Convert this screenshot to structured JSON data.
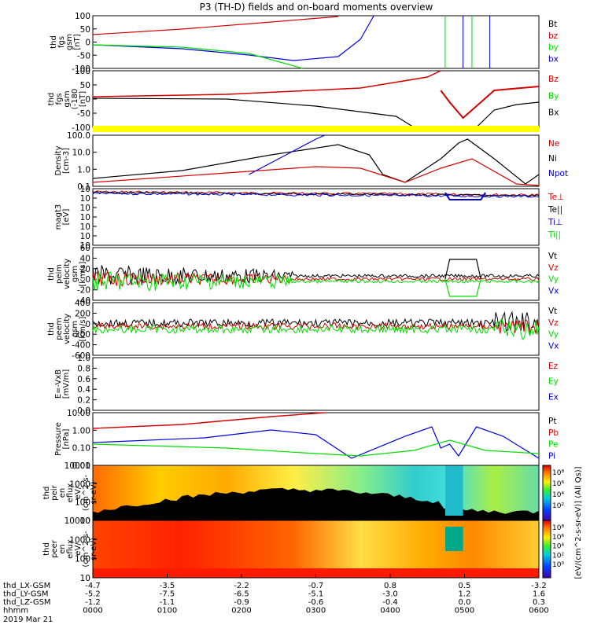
{
  "title": "P3 (TH-D) fields and on-board moments overview",
  "date_label": "2019 Mar 21",
  "time_axis": {
    "row_labels": [
      "thd_LX-GSM",
      "thd_LY-GSM",
      "thd_LZ-GSM",
      "hhmm"
    ],
    "columns": [
      [
        "-4.7",
        "-5.2",
        "-1.2",
        "0000"
      ],
      [
        "-3.5",
        "-7.5",
        "-1.1",
        "0100"
      ],
      [
        "-2.2",
        "-6.5",
        "-0.9",
        "0200"
      ],
      [
        "-0.7",
        "-5.1",
        "-0.6",
        "0300"
      ],
      [
        "0.8",
        "-3.0",
        "-0.4",
        "0400"
      ],
      [
        "0.5",
        "1.2",
        "0.0",
        "0500"
      ],
      [
        "-3.2",
        "1.6",
        "0.3",
        "0600"
      ]
    ]
  },
  "colors": {
    "black": "#000000",
    "red": "#d40000",
    "green": "#00dd00",
    "blue": "#0000dd",
    "yellow": "#ffff00"
  },
  "panels": [
    {
      "id": "fgs",
      "ylabel": [
        "thd",
        "fgs",
        "gsm",
        "[nT]"
      ],
      "ticks": [
        "100",
        "50",
        "0",
        "-50",
        "-100"
      ],
      "legend": [
        "Bt",
        "bz",
        "by",
        "bx"
      ]
    },
    {
      "id": "fgs_dsl",
      "ylabel": [
        "thd",
        "fgs",
        "gsm",
        "(-180",
        "[nT]"
      ],
      "ticks": [
        "100",
        "50",
        "0",
        "-50",
        "-100"
      ],
      "legend": [
        "Bz",
        "By",
        "Bx"
      ]
    },
    {
      "id": "density",
      "ylabel": [
        "Density",
        "[cm-3]"
      ],
      "ticks": [
        "100.0",
        "10.0",
        "1.0",
        "0.1"
      ],
      "legend": [
        "Ne",
        "Ni",
        "Npot"
      ]
    },
    {
      "id": "temp",
      "ylabel": [
        "magt3",
        "[eV]"
      ],
      "ticks": [
        "10",
        "10",
        "10",
        "10",
        "10",
        "10",
        "10"
      ],
      "legend": [
        "Te⊥",
        "Te||",
        "Ti⊥",
        "Ti||"
      ]
    },
    {
      "id": "vi",
      "ylabel": [
        "thd",
        "peim",
        "velocity",
        "gsm",
        "[km/s]"
      ],
      "ticks": [
        "60",
        "40",
        "20",
        "0",
        "-20",
        "-40"
      ],
      "legend": [
        "Vt",
        "Vz",
        "Vy",
        "Vx"
      ]
    },
    {
      "id": "ve",
      "ylabel": [
        "thd",
        "peem",
        "velocity",
        "gsm",
        "[km/s]"
      ],
      "ticks": [
        "400",
        "200",
        "0",
        "-200",
        "-400",
        "-600"
      ],
      "legend": [
        "Vt",
        "Vz",
        "Vy",
        "Vx"
      ]
    },
    {
      "id": "efield",
      "ylabel": [
        "E=-VxB",
        "[mV/m]"
      ],
      "ticks": [
        "1.0",
        "0.8",
        "0.6",
        "0.4",
        "0.2",
        "0.0"
      ],
      "legend": [
        "Ez",
        "Ey",
        "Ex"
      ]
    },
    {
      "id": "pressure",
      "ylabel": [
        "Pressure",
        "[nPa]"
      ],
      "ticks": [
        "10.00",
        "1.00",
        "0.10",
        "0.01"
      ],
      "legend": [
        "Pt",
        "Pb",
        "Pe",
        "Pi"
      ]
    },
    {
      "id": "ion_spec",
      "ylabel": [
        "thd",
        "peir",
        "en",
        "eflux",
        "eV/",
        "(cm^2-s-",
        "sr-eV)"
      ],
      "ticks": [
        "10000",
        "1000",
        "100",
        "10"
      ],
      "legend": []
    },
    {
      "id": "elec_spec",
      "ylabel": [
        "thd",
        "peer",
        "en",
        "eflux",
        "eV/",
        "(cm^2-s-",
        "sr-eV)"
      ],
      "ticks": [
        "10000",
        "1000",
        "100",
        "10"
      ],
      "legend": []
    }
  ],
  "colorbar": {
    "ion_ticks": [
      "10⁸",
      "10⁶",
      "10⁴",
      "10²"
    ],
    "elec_ticks": [
      "10⁸",
      "10⁶",
      "10⁴",
      "10²",
      "10⁰"
    ],
    "label": "[eV/(cm^2-s-sr-eV)] (All Qs)]"
  },
  "chart_data": {
    "type": "line",
    "x_unit": "hhmm",
    "x_range": [
      "0000",
      "0600"
    ],
    "series_approx": [
      {
        "panel": "fgs",
        "name": "bx",
        "x": [
          "0000",
          "0100",
          "0200",
          "0300",
          "0330",
          "0345"
        ],
        "values": [
          -10,
          -20,
          -35,
          -55,
          -60,
          100
        ]
      },
      {
        "panel": "fgs",
        "name": "bz",
        "x": [
          "0000",
          "0100",
          "0200",
          "0300",
          "0330"
        ],
        "values": [
          30,
          50,
          70,
          90,
          100
        ]
      },
      {
        "panel": "fgs",
        "name": "by",
        "x": [
          "0000",
          "0100",
          "0200",
          "0300",
          "0330"
        ],
        "values": [
          -10,
          -15,
          -25,
          -45,
          -100
        ]
      },
      {
        "panel": "pressure",
        "name": "Pb",
        "x": [
          "0000",
          "0100",
          "0200",
          "0300",
          "0330"
        ],
        "values": [
          0.7,
          1.2,
          2.5,
          6,
          10
        ]
      },
      {
        "panel": "pressure",
        "name": "Pi",
        "x": [
          "0000",
          "0200",
          "0300",
          "0350",
          "0400",
          "0430",
          "0445",
          "0500",
          "0545",
          "0600"
        ],
        "values": [
          0.25,
          0.4,
          1.5,
          0.5,
          0.01,
          0.6,
          2,
          0.02,
          2,
          0.03
        ]
      },
      {
        "panel": "pressure",
        "name": "Pe",
        "x": [
          "0000",
          "0200",
          "0330",
          "0400",
          "0445",
          "0500",
          "0545",
          "0600"
        ],
        "values": [
          0.15,
          0.1,
          0.04,
          0.03,
          0.08,
          0.3,
          0.07,
          0.02
        ]
      },
      {
        "panel": "density",
        "name": "Ni",
        "x": [
          "0000",
          "0100",
          "0200",
          "0300",
          "0345",
          "0400",
          "0430",
          "0445",
          "0500",
          "0545",
          "0600"
        ],
        "values": [
          0.3,
          1,
          4,
          25,
          15,
          0.2,
          30,
          60,
          50,
          0.5,
          0.2
        ]
      },
      {
        "panel": "density",
        "name": "Ne",
        "x": [
          "0000",
          "0200",
          "0300",
          "0345",
          "0400",
          "0430",
          "0445",
          "0500",
          "0545",
          "0600"
        ],
        "values": [
          0.2,
          0.8,
          1.5,
          1.8,
          0.3,
          2,
          3,
          5,
          0.3,
          0.2
        ]
      }
    ]
  }
}
